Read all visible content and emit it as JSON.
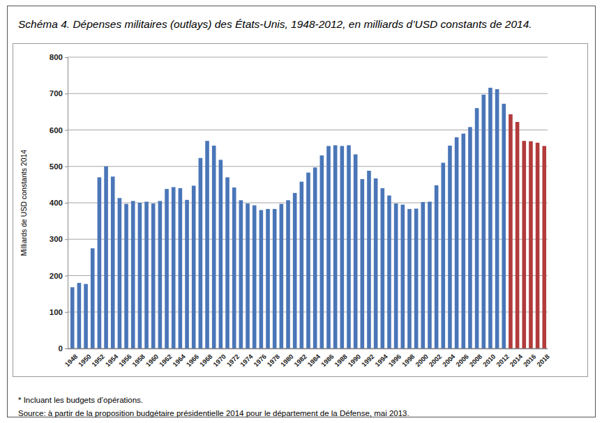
{
  "chart_data": {
    "type": "bar",
    "title": "Schéma 4. Dépenses militaires (outlays) des États-Unis, 1948-2012, en milliards d’USD constants de 2014.",
    "y_label": "Milliards de USD constants 2014",
    "annotations": [
      "* Incluant les budgets d’opérations.",
      "Source: à partir de la proposition budgétaire présidentielle 2014 pour le département de la Défense, mai 2013."
    ],
    "categories": [
      "1948",
      null,
      "1950",
      null,
      "1952",
      null,
      "1954",
      null,
      "1956",
      null,
      "1958",
      null,
      "1960",
      null,
      "1962",
      null,
      "1964",
      null,
      "1966",
      null,
      "1968",
      null,
      "1970",
      null,
      "1972",
      null,
      "1974",
      null,
      "1976",
      null,
      "1978",
      null,
      "1980",
      null,
      "1982",
      null,
      "1984",
      null,
      "1986",
      null,
      "1988",
      null,
      "1990",
      null,
      "1992",
      null,
      "1994",
      null,
      "1996",
      null,
      "1998",
      null,
      "2000",
      null,
      "2002",
      null,
      "2004",
      null,
      "2006",
      null,
      "2008",
      null,
      "2010",
      null,
      "2012",
      null,
      "2014",
      null,
      "2016",
      null,
      "2018"
    ],
    "values": [
      168,
      180,
      177,
      275,
      470,
      500,
      472,
      413,
      397,
      405,
      400,
      403,
      398,
      405,
      438,
      443,
      440,
      408,
      447,
      523,
      570,
      557,
      518,
      470,
      442,
      407,
      398,
      393,
      380,
      383,
      383,
      397,
      407,
      427,
      458,
      483,
      497,
      530,
      556,
      558,
      556,
      558,
      533,
      465,
      488,
      467,
      440,
      420,
      398,
      395,
      383,
      384,
      402,
      403,
      448,
      510,
      557,
      580,
      590,
      608,
      660,
      697,
      716,
      712,
      672,
      643,
      622,
      570,
      569,
      565,
      556
    ],
    "colors": [
      "#4a76b8",
      "#4a76b8",
      "#4a76b8",
      "#4a76b8",
      "#4a76b8",
      "#4a76b8",
      "#4a76b8",
      "#4a76b8",
      "#4a76b8",
      "#4a76b8",
      "#4a76b8",
      "#4a76b8",
      "#4a76b8",
      "#4a76b8",
      "#4a76b8",
      "#4a76b8",
      "#4a76b8",
      "#4a76b8",
      "#4a76b8",
      "#4a76b8",
      "#4a76b8",
      "#4a76b8",
      "#4a76b8",
      "#4a76b8",
      "#4a76b8",
      "#4a76b8",
      "#4a76b8",
      "#4a76b8",
      "#4a76b8",
      "#4a76b8",
      "#4a76b8",
      "#4a76b8",
      "#4a76b8",
      "#4a76b8",
      "#4a76b8",
      "#4a76b8",
      "#4a76b8",
      "#4a76b8",
      "#4a76b8",
      "#4a76b8",
      "#4a76b8",
      "#4a76b8",
      "#4a76b8",
      "#4a76b8",
      "#4a76b8",
      "#4a76b8",
      "#4a76b8",
      "#4a76b8",
      "#4a76b8",
      "#4a76b8",
      "#4a76b8",
      "#4a76b8",
      "#4a76b8",
      "#4a76b8",
      "#4a76b8",
      "#4a76b8",
      "#4a76b8",
      "#4a76b8",
      "#4a76b8",
      "#4a76b8",
      "#4a76b8",
      "#4a76b8",
      "#4a76b8",
      "#4a76b8",
      "#4a76b8",
      "#b23b3b",
      "#b23b3b",
      "#b23b3b",
      "#b23b3b",
      "#b23b3b",
      "#b23b3b"
    ],
    "ylim": [
      0,
      800
    ],
    "yticks": [
      0,
      100,
      200,
      300,
      400,
      500,
      600,
      700,
      800
    ],
    "grid": true
  }
}
